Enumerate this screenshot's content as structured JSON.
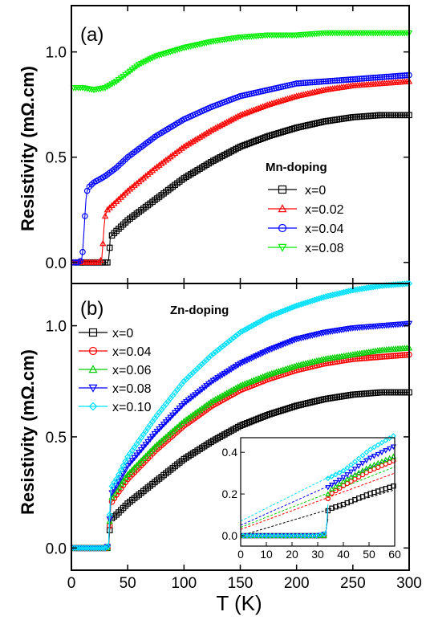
{
  "chart_data": [
    {
      "type": "scatter",
      "panel_label": "(a)",
      "ylabel": "Resistivity (mΩ.cm)",
      "xlabel": "",
      "xlim": [
        0,
        300
      ],
      "ylim": [
        -0.1,
        1.22
      ],
      "x_ticks": [],
      "y_ticks": [
        "0.0",
        "0.5",
        "1.0"
      ],
      "y_tick_values": [
        0,
        0.5,
        1.0
      ],
      "legend_title": "Mn-doping",
      "legend_position": "center-right",
      "series": [
        {
          "name": "x=0",
          "color": "#000000",
          "marker": "square",
          "Tc": 33,
          "points": [
            [
              2,
              0
            ],
            [
              10,
              0
            ],
            [
              20,
              0
            ],
            [
              30,
              0
            ],
            [
              32,
              0
            ],
            [
              33,
              0.01
            ],
            [
              34,
              0.07
            ],
            [
              34.5,
              0.12
            ],
            [
              40,
              0.15
            ],
            [
              50,
              0.2
            ],
            [
              75,
              0.3
            ],
            [
              100,
              0.4
            ],
            [
              125,
              0.48
            ],
            [
              150,
              0.55
            ],
            [
              175,
              0.6
            ],
            [
              200,
              0.64
            ],
            [
              225,
              0.67
            ],
            [
              250,
              0.69
            ],
            [
              275,
              0.7
            ],
            [
              300,
              0.7
            ]
          ]
        },
        {
          "name": "x=0.02",
          "color": "#ff0000",
          "marker": "triangle-up",
          "Tc": 28,
          "points": [
            [
              2,
              0
            ],
            [
              10,
              0
            ],
            [
              20,
              0
            ],
            [
              25,
              0
            ],
            [
              27,
              0.02
            ],
            [
              28,
              0.09
            ],
            [
              29,
              0.17
            ],
            [
              30,
              0.22
            ],
            [
              32,
              0.25
            ],
            [
              40,
              0.29
            ],
            [
              50,
              0.34
            ],
            [
              75,
              0.45
            ],
            [
              100,
              0.55
            ],
            [
              125,
              0.63
            ],
            [
              150,
              0.7
            ],
            [
              175,
              0.75
            ],
            [
              200,
              0.79
            ],
            [
              225,
              0.82
            ],
            [
              250,
              0.84
            ],
            [
              275,
              0.85
            ],
            [
              300,
              0.86
            ]
          ]
        },
        {
          "name": "x=0.04",
          "color": "#0000ff",
          "marker": "circle",
          "Tc": 12,
          "points": [
            [
              2,
              0
            ],
            [
              6,
              0
            ],
            [
              9,
              0.01
            ],
            [
              10,
              0.05
            ],
            [
              11,
              0.13
            ],
            [
              12,
              0.22
            ],
            [
              13,
              0.3
            ],
            [
              14,
              0.34
            ],
            [
              16,
              0.36
            ],
            [
              20,
              0.38
            ],
            [
              30,
              0.41
            ],
            [
              40,
              0.45
            ],
            [
              50,
              0.5
            ],
            [
              75,
              0.6
            ],
            [
              100,
              0.68
            ],
            [
              125,
              0.74
            ],
            [
              150,
              0.79
            ],
            [
              175,
              0.82
            ],
            [
              200,
              0.85
            ],
            [
              225,
              0.86
            ],
            [
              250,
              0.87
            ],
            [
              275,
              0.88
            ],
            [
              300,
              0.89
            ]
          ]
        },
        {
          "name": "x=0.08",
          "color": "#00ee00",
          "marker": "triangle-down",
          "Tc": null,
          "points": [
            [
              2,
              0.83
            ],
            [
              10,
              0.83
            ],
            [
              20,
              0.82
            ],
            [
              30,
              0.83
            ],
            [
              40,
              0.86
            ],
            [
              50,
              0.9
            ],
            [
              60,
              0.94
            ],
            [
              75,
              0.98
            ],
            [
              100,
              1.02
            ],
            [
              125,
              1.05
            ],
            [
              150,
              1.07
            ],
            [
              175,
              1.08
            ],
            [
              200,
              1.08
            ],
            [
              225,
              1.09
            ],
            [
              250,
              1.09
            ],
            [
              275,
              1.09
            ],
            [
              300,
              1.09
            ]
          ]
        }
      ]
    },
    {
      "type": "scatter",
      "panel_label": "(b)",
      "ylabel": "Resistivity (mΩ.cm)",
      "xlabel": "T (K)",
      "xlim": [
        0,
        300
      ],
      "ylim": [
        -0.1,
        1.19
      ],
      "x_ticks": [
        "0",
        "50",
        "100",
        "150",
        "200",
        "250",
        "300"
      ],
      "x_tick_values": [
        0,
        50,
        100,
        150,
        200,
        250,
        300
      ],
      "y_ticks": [
        "0.0",
        "0.5",
        "1.0"
      ],
      "y_tick_values": [
        0,
        0.5,
        1.0
      ],
      "legend_title": "Zn-doping",
      "legend_position": "top-left",
      "series": [
        {
          "name": "x=0",
          "color": "#000000",
          "marker": "square",
          "Tc": 33,
          "points": [
            [
              2,
              0
            ],
            [
              10,
              0
            ],
            [
              20,
              0
            ],
            [
              30,
              0
            ],
            [
              33,
              0
            ],
            [
              34,
              0.08
            ],
            [
              35,
              0.13
            ],
            [
              40,
              0.15
            ],
            [
              50,
              0.2
            ],
            [
              75,
              0.3
            ],
            [
              100,
              0.4
            ],
            [
              125,
              0.48
            ],
            [
              150,
              0.55
            ],
            [
              175,
              0.6
            ],
            [
              200,
              0.64
            ],
            [
              225,
              0.67
            ],
            [
              250,
              0.69
            ],
            [
              275,
              0.7
            ],
            [
              300,
              0.7
            ]
          ]
        },
        {
          "name": "x=0.04",
          "color": "#ff0000",
          "marker": "circle",
          "Tc": 33,
          "points": [
            [
              2,
              0
            ],
            [
              10,
              0
            ],
            [
              20,
              0
            ],
            [
              30,
              0
            ],
            [
              33,
              0
            ],
            [
              34,
              0.1
            ],
            [
              35,
              0.2
            ],
            [
              40,
              0.24
            ],
            [
              50,
              0.31
            ],
            [
              75,
              0.44
            ],
            [
              100,
              0.55
            ],
            [
              125,
              0.64
            ],
            [
              150,
              0.71
            ],
            [
              175,
              0.76
            ],
            [
              200,
              0.8
            ],
            [
              225,
              0.83
            ],
            [
              250,
              0.85
            ],
            [
              275,
              0.86
            ],
            [
              300,
              0.87
            ]
          ]
        },
        {
          "name": "x=0.06",
          "color": "#00cc00",
          "marker": "triangle-up",
          "Tc": 33,
          "points": [
            [
              2,
              0
            ],
            [
              10,
              0
            ],
            [
              20,
              0
            ],
            [
              30,
              0
            ],
            [
              33,
              0
            ],
            [
              34,
              0.12
            ],
            [
              35,
              0.22
            ],
            [
              40,
              0.26
            ],
            [
              50,
              0.33
            ],
            [
              75,
              0.46
            ],
            [
              100,
              0.57
            ],
            [
              125,
              0.66
            ],
            [
              150,
              0.73
            ],
            [
              175,
              0.78
            ],
            [
              200,
              0.82
            ],
            [
              225,
              0.85
            ],
            [
              250,
              0.87
            ],
            [
              275,
              0.89
            ],
            [
              300,
              0.9
            ]
          ]
        },
        {
          "name": "x=0.08",
          "color": "#0000ff",
          "marker": "triangle-down",
          "Tc": 33,
          "points": [
            [
              2,
              0
            ],
            [
              10,
              0
            ],
            [
              20,
              0
            ],
            [
              30,
              0
            ],
            [
              33,
              0.01
            ],
            [
              34,
              0.13
            ],
            [
              35,
              0.24
            ],
            [
              40,
              0.28
            ],
            [
              50,
              0.37
            ],
            [
              75,
              0.52
            ],
            [
              100,
              0.65
            ],
            [
              125,
              0.75
            ],
            [
              150,
              0.83
            ],
            [
              175,
              0.89
            ],
            [
              200,
              0.94
            ],
            [
              225,
              0.97
            ],
            [
              250,
              0.99
            ],
            [
              275,
              1.0
            ],
            [
              300,
              1.01
            ]
          ]
        },
        {
          "name": "x=0.10",
          "color": "#00e0ff",
          "marker": "diamond",
          "Tc": 33,
          "points": [
            [
              2,
              0
            ],
            [
              10,
              0
            ],
            [
              20,
              0
            ],
            [
              30,
              0
            ],
            [
              33,
              0.01
            ],
            [
              34,
              0.15
            ],
            [
              35,
              0.27
            ],
            [
              40,
              0.31
            ],
            [
              50,
              0.41
            ],
            [
              75,
              0.59
            ],
            [
              100,
              0.75
            ],
            [
              125,
              0.87
            ],
            [
              150,
              0.97
            ],
            [
              175,
              1.04
            ],
            [
              200,
              1.09
            ],
            [
              225,
              1.13
            ],
            [
              250,
              1.16
            ],
            [
              275,
              1.18
            ],
            [
              300,
              1.19
            ]
          ]
        }
      ],
      "inset": {
        "type": "scatter",
        "xlim": [
          0,
          60
        ],
        "ylim": [
          -0.05,
          0.47
        ],
        "x_ticks": [
          "0",
          "10",
          "20",
          "30",
          "40",
          "50",
          "60"
        ],
        "x_tick_values": [
          0,
          10,
          20,
          30,
          40,
          50,
          60
        ],
        "y_ticks": [
          "0.0",
          "0.2",
          "0.4"
        ],
        "y_tick_values": [
          0,
          0.2,
          0.4
        ],
        "extrapolation_lines": [
          {
            "color": "#000000",
            "y0": 0.0,
            "y60": 0.22
          },
          {
            "color": "#ff0000",
            "y0": 0.03,
            "y60": 0.3
          },
          {
            "color": "#00cc00",
            "y0": 0.04,
            "y60": 0.33
          },
          {
            "color": "#0000ff",
            "y0": 0.05,
            "y60": 0.38
          },
          {
            "color": "#00e0ff",
            "y0": 0.07,
            "y60": 0.44
          }
        ]
      }
    }
  ]
}
